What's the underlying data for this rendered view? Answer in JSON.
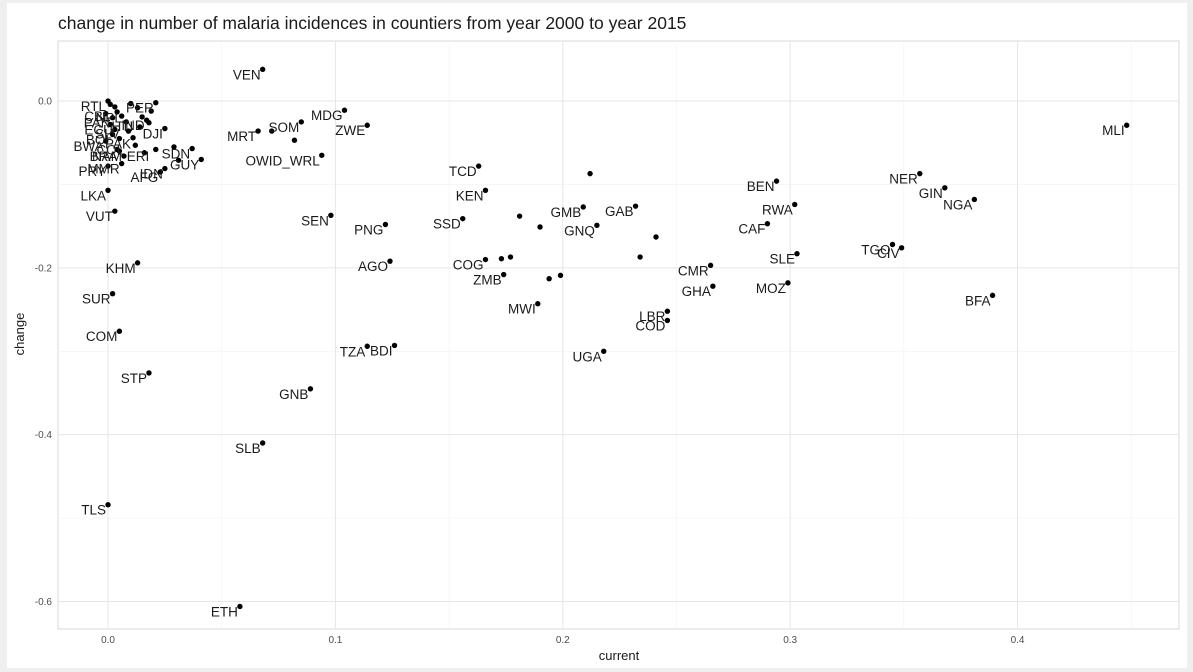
{
  "chart_data": {
    "type": "scatter",
    "title": "change in number of malaria incidences in countiers from year 2000 to year 2015",
    "xlabel": "current",
    "ylabel": "change",
    "xlim": [
      -0.022,
      0.471
    ],
    "ylim": [
      -0.633,
      0.072
    ],
    "xticks": [
      0.0,
      0.1,
      0.2,
      0.3,
      0.4
    ],
    "xtick_labels": [
      "0.0",
      "0.1",
      "0.2",
      "0.3",
      "0.4"
    ],
    "yticks": [
      0.0,
      -0.2,
      -0.4,
      -0.6
    ],
    "ytick_labels": [
      "0.0",
      "-0.2",
      "-0.4",
      "-0.6"
    ],
    "grid": true,
    "points": [
      {
        "label": "VEN",
        "x": 0.068,
        "y": 0.038
      },
      {
        "label": "MLI",
        "x": 0.448,
        "y": -0.029
      },
      {
        "label": "MDG",
        "x": 0.104,
        "y": -0.011
      },
      {
        "label": "ZWE",
        "x": 0.114,
        "y": -0.029
      },
      {
        "label": "SOM",
        "x": 0.085,
        "y": -0.025
      },
      {
        "label": "MRT",
        "x": 0.066,
        "y": -0.036
      },
      {
        "label": "OWID_WRL",
        "x": 0.094,
        "y": -0.065
      },
      {
        "label": "PER",
        "x": 0.021,
        "y": -0.002
      },
      {
        "label": "DJI",
        "x": 0.025,
        "y": -0.033
      },
      {
        "label": "IND",
        "x": 0.017,
        "y": -0.023
      },
      {
        "label": "SDN",
        "x": 0.037,
        "y": -0.057
      },
      {
        "label": "GUY",
        "x": 0.041,
        "y": -0.07
      },
      {
        "label": "IDN",
        "x": 0.025,
        "y": -0.081
      },
      {
        "label": "AFG",
        "x": 0.023,
        "y": -0.085
      },
      {
        "label": "MMR",
        "x": 0.006,
        "y": -0.075
      },
      {
        "label": "BRA",
        "x": 0.005,
        "y": -0.06
      },
      {
        "label": "BWA",
        "x": -0.001,
        "y": -0.048
      },
      {
        "label": "PRY",
        "x": 0.0,
        "y": -0.078
      },
      {
        "label": "LKA",
        "x": 0.0,
        "y": -0.107
      },
      {
        "label": "VUT",
        "x": 0.003,
        "y": -0.132
      },
      {
        "label": "KHM",
        "x": 0.013,
        "y": -0.194
      },
      {
        "label": "SUR",
        "x": 0.002,
        "y": -0.231
      },
      {
        "label": "COM",
        "x": 0.005,
        "y": -0.276
      },
      {
        "label": "STP",
        "x": 0.018,
        "y": -0.326
      },
      {
        "label": "TLS",
        "x": 0.0,
        "y": -0.484
      },
      {
        "label": "SLB",
        "x": 0.068,
        "y": -0.41
      },
      {
        "label": "ETH",
        "x": 0.058,
        "y": -0.606
      },
      {
        "label": "GNB",
        "x": 0.089,
        "y": -0.345
      },
      {
        "label": "SEN",
        "x": 0.098,
        "y": -0.137
      },
      {
        "label": "PNG",
        "x": 0.122,
        "y": -0.148
      },
      {
        "label": "AGO",
        "x": 0.124,
        "y": -0.192
      },
      {
        "label": "TZA",
        "x": 0.114,
        "y": -0.294
      },
      {
        "label": "BDI",
        "x": 0.126,
        "y": -0.293
      },
      {
        "label": "SSD",
        "x": 0.156,
        "y": -0.141
      },
      {
        "label": "TCD",
        "x": 0.163,
        "y": -0.078
      },
      {
        "label": "KEN",
        "x": 0.166,
        "y": -0.107
      },
      {
        "label": "COG",
        "x": 0.166,
        "y": -0.19
      },
      {
        "label": "ZMB",
        "x": 0.174,
        "y": -0.208
      },
      {
        "label": "MWI",
        "x": 0.189,
        "y": -0.243
      },
      {
        "label": "GMB",
        "x": 0.209,
        "y": -0.127
      },
      {
        "label": "GNQ",
        "x": 0.215,
        "y": -0.149
      },
      {
        "label": "GAB",
        "x": 0.232,
        "y": -0.126
      },
      {
        "label": "UGA",
        "x": 0.218,
        "y": -0.3
      },
      {
        "label": "CMR",
        "x": 0.265,
        "y": -0.197
      },
      {
        "label": "GHA",
        "x": 0.266,
        "y": -0.222
      },
      {
        "label": "LBR",
        "x": 0.246,
        "y": -0.252
      },
      {
        "label": "COD",
        "x": 0.246,
        "y": -0.263
      },
      {
        "label": "BEN",
        "x": 0.294,
        "y": -0.096
      },
      {
        "label": "RWA",
        "x": 0.302,
        "y": -0.124
      },
      {
        "label": "CAF",
        "x": 0.29,
        "y": -0.147
      },
      {
        "label": "SLE",
        "x": 0.303,
        "y": -0.183
      },
      {
        "label": "MOZ",
        "x": 0.299,
        "y": -0.218
      },
      {
        "label": "NER",
        "x": 0.357,
        "y": -0.087
      },
      {
        "label": "GIN",
        "x": 0.368,
        "y": -0.104
      },
      {
        "label": "NGA",
        "x": 0.381,
        "y": -0.118
      },
      {
        "label": "TGO",
        "x": 0.345,
        "y": -0.172
      },
      {
        "label": "CIV",
        "x": 0.349,
        "y": -0.176
      },
      {
        "label": "BFA",
        "x": 0.389,
        "y": -0.233
      },
      {
        "label": "",
        "x": 0.212,
        "y": -0.087
      },
      {
        "label": "",
        "x": 0.181,
        "y": -0.138
      },
      {
        "label": "",
        "x": 0.19,
        "y": -0.151
      },
      {
        "label": "",
        "x": 0.241,
        "y": -0.163
      },
      {
        "label": "",
        "x": 0.234,
        "y": -0.187
      },
      {
        "label": "",
        "x": 0.173,
        "y": -0.189
      },
      {
        "label": "",
        "x": 0.177,
        "y": -0.187
      },
      {
        "label": "",
        "x": 0.194,
        "y": -0.213
      },
      {
        "label": "",
        "x": 0.199,
        "y": -0.209
      },
      {
        "label": "",
        "x": 0.082,
        "y": -0.047
      },
      {
        "label": "",
        "x": 0.072,
        "y": -0.036
      },
      {
        "label": "",
        "x": 0.0,
        "y": 0.0
      },
      {
        "label": "",
        "x": 0.001,
        "y": -0.004
      },
      {
        "label": "",
        "x": 0.003,
        "y": -0.007
      },
      {
        "label": "",
        "x": 0.004,
        "y": -0.013
      },
      {
        "label": "",
        "x": -0.001,
        "y": -0.015
      },
      {
        "label": "",
        "x": 0.002,
        "y": -0.02
      },
      {
        "label": "",
        "x": 0.006,
        "y": -0.018
      },
      {
        "label": "",
        "x": 0.008,
        "y": -0.025
      },
      {
        "label": "",
        "x": 0.001,
        "y": -0.028
      },
      {
        "label": "",
        "x": 0.003,
        "y": -0.034
      },
      {
        "label": "",
        "x": 0.009,
        "y": -0.036
      },
      {
        "label": "",
        "x": 0.011,
        "y": -0.044
      },
      {
        "label": "",
        "x": 0.002,
        "y": -0.04
      },
      {
        "label": "",
        "x": 0.013,
        "y": -0.008
      },
      {
        "label": "",
        "x": 0.015,
        "y": -0.019
      },
      {
        "label": "",
        "x": 0.018,
        "y": -0.026
      },
      {
        "label": "",
        "x": 0.012,
        "y": -0.053
      },
      {
        "label": "",
        "x": 0.016,
        "y": -0.062
      },
      {
        "label": "",
        "x": 0.021,
        "y": -0.058
      },
      {
        "label": "",
        "x": 0.029,
        "y": -0.055
      },
      {
        "label": "",
        "x": 0.031,
        "y": -0.071
      },
      {
        "label": "",
        "x": 0.004,
        "y": -0.058
      },
      {
        "label": "",
        "x": 0.007,
        "y": -0.066
      },
      {
        "label": "",
        "x": 0.01,
        "y": -0.003
      },
      {
        "label": "",
        "x": 0.005,
        "y": -0.045
      },
      {
        "label": "",
        "x": 0.019,
        "y": -0.012
      },
      {
        "label": "",
        "x": 0.014,
        "y": -0.031
      }
    ],
    "cluster_label_fragments": [
      {
        "label": "RTL",
        "x": 0.0,
        "y": 0.0
      },
      {
        "label": "CBL",
        "x": 0.002,
        "y": -0.012
      },
      {
        "label": "NPL",
        "x": 0.007,
        "y": -0.014
      },
      {
        "label": "PAN",
        "x": 0.002,
        "y": -0.02
      },
      {
        "label": "ECU",
        "x": 0.003,
        "y": -0.028
      },
      {
        "label": "SLV",
        "x": 0.006,
        "y": -0.033
      },
      {
        "label": "BOL",
        "x": 0.003,
        "y": -0.04
      },
      {
        "label": "COL",
        "x": 0.008,
        "y": -0.052
      },
      {
        "label": "PAK",
        "x": 0.011,
        "y": -0.045
      },
      {
        "label": "NAM",
        "x": 0.007,
        "y": -0.06
      },
      {
        "label": "ERI",
        "x": 0.019,
        "y": -0.06
      },
      {
        "label": "HTI",
        "x": 0.012,
        "y": -0.024
      }
    ]
  }
}
